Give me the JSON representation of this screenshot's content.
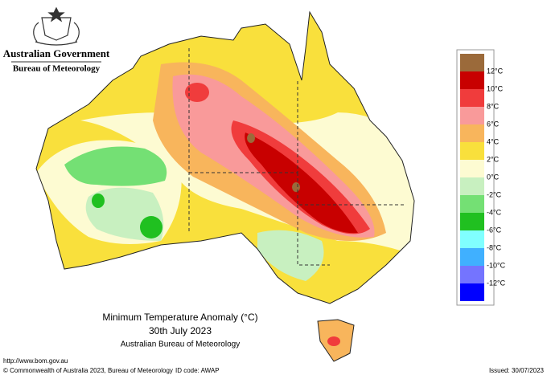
{
  "header": {
    "government": "Australian Government",
    "agency": "Bureau of Meteorology"
  },
  "title": {
    "line1": "Minimum Temperature Anomaly (°C)",
    "line2": "30th July 2023",
    "line3": "Australian Bureau of Meteorology"
  },
  "legend": {
    "colors": [
      "#9b6a3a",
      "#c80000",
      "#f03c3c",
      "#f99a9a",
      "#f8b55c",
      "#f9e03c",
      "#fdfbd2",
      "#c8f0c0",
      "#74e074",
      "#20c020",
      "#80ffff",
      "#40b0ff",
      "#7474ff",
      "#0000ff"
    ],
    "labels": [
      "12°C",
      "10°C",
      "8°C",
      "6°C",
      "4°C",
      "2°C",
      "0°C",
      "-2°C",
      "-4°C",
      "-6°C",
      "-8°C",
      "-10°C",
      "-12°C"
    ]
  },
  "footer": {
    "url": "http://www.bom.gov.au",
    "copyright": "© Commonwealth of Australia 2023, Bureau of Meteorology",
    "id_code": "ID code: AWAP",
    "issued": "Issued: 30/07/2023"
  }
}
